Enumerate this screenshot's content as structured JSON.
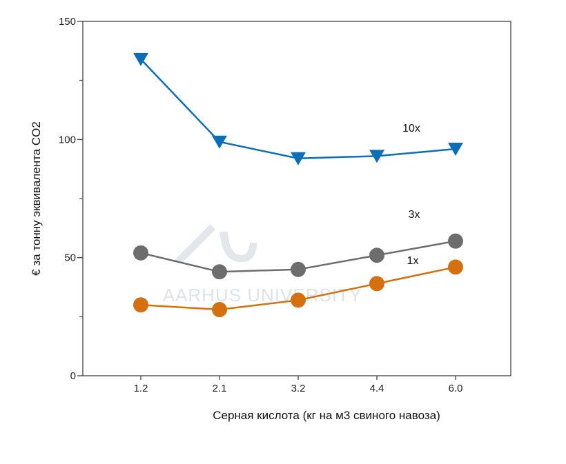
{
  "chart_data": {
    "type": "line",
    "title": "",
    "xlabel": "Серная кислота (кг на м3 свиного навоза)",
    "ylabel": "€ за тонну эквивалента CO2",
    "categories": [
      "1.2",
      "2.1",
      "3.2",
      "4.4",
      "6.0"
    ],
    "ylim": [
      0,
      150
    ],
    "yticks": [
      0,
      50,
      100,
      150
    ],
    "grid": false,
    "legend": "none",
    "series": [
      {
        "name": "10x",
        "values": [
          134,
          99,
          92,
          93,
          96
        ],
        "color": "#0a6fb8",
        "marker": "triangle-down"
      },
      {
        "name": "3x",
        "values": [
          52,
          44,
          45,
          51,
          57
        ],
        "color": "#6d6d6d",
        "marker": "circle"
      },
      {
        "name": "1x",
        "values": [
          30,
          28,
          32,
          39,
          46
        ],
        "color": "#d4700f",
        "marker": "circle"
      }
    ]
  },
  "watermark": {
    "text": "AARHUS UNIVERSITY",
    "color": "#dfe3e8"
  }
}
